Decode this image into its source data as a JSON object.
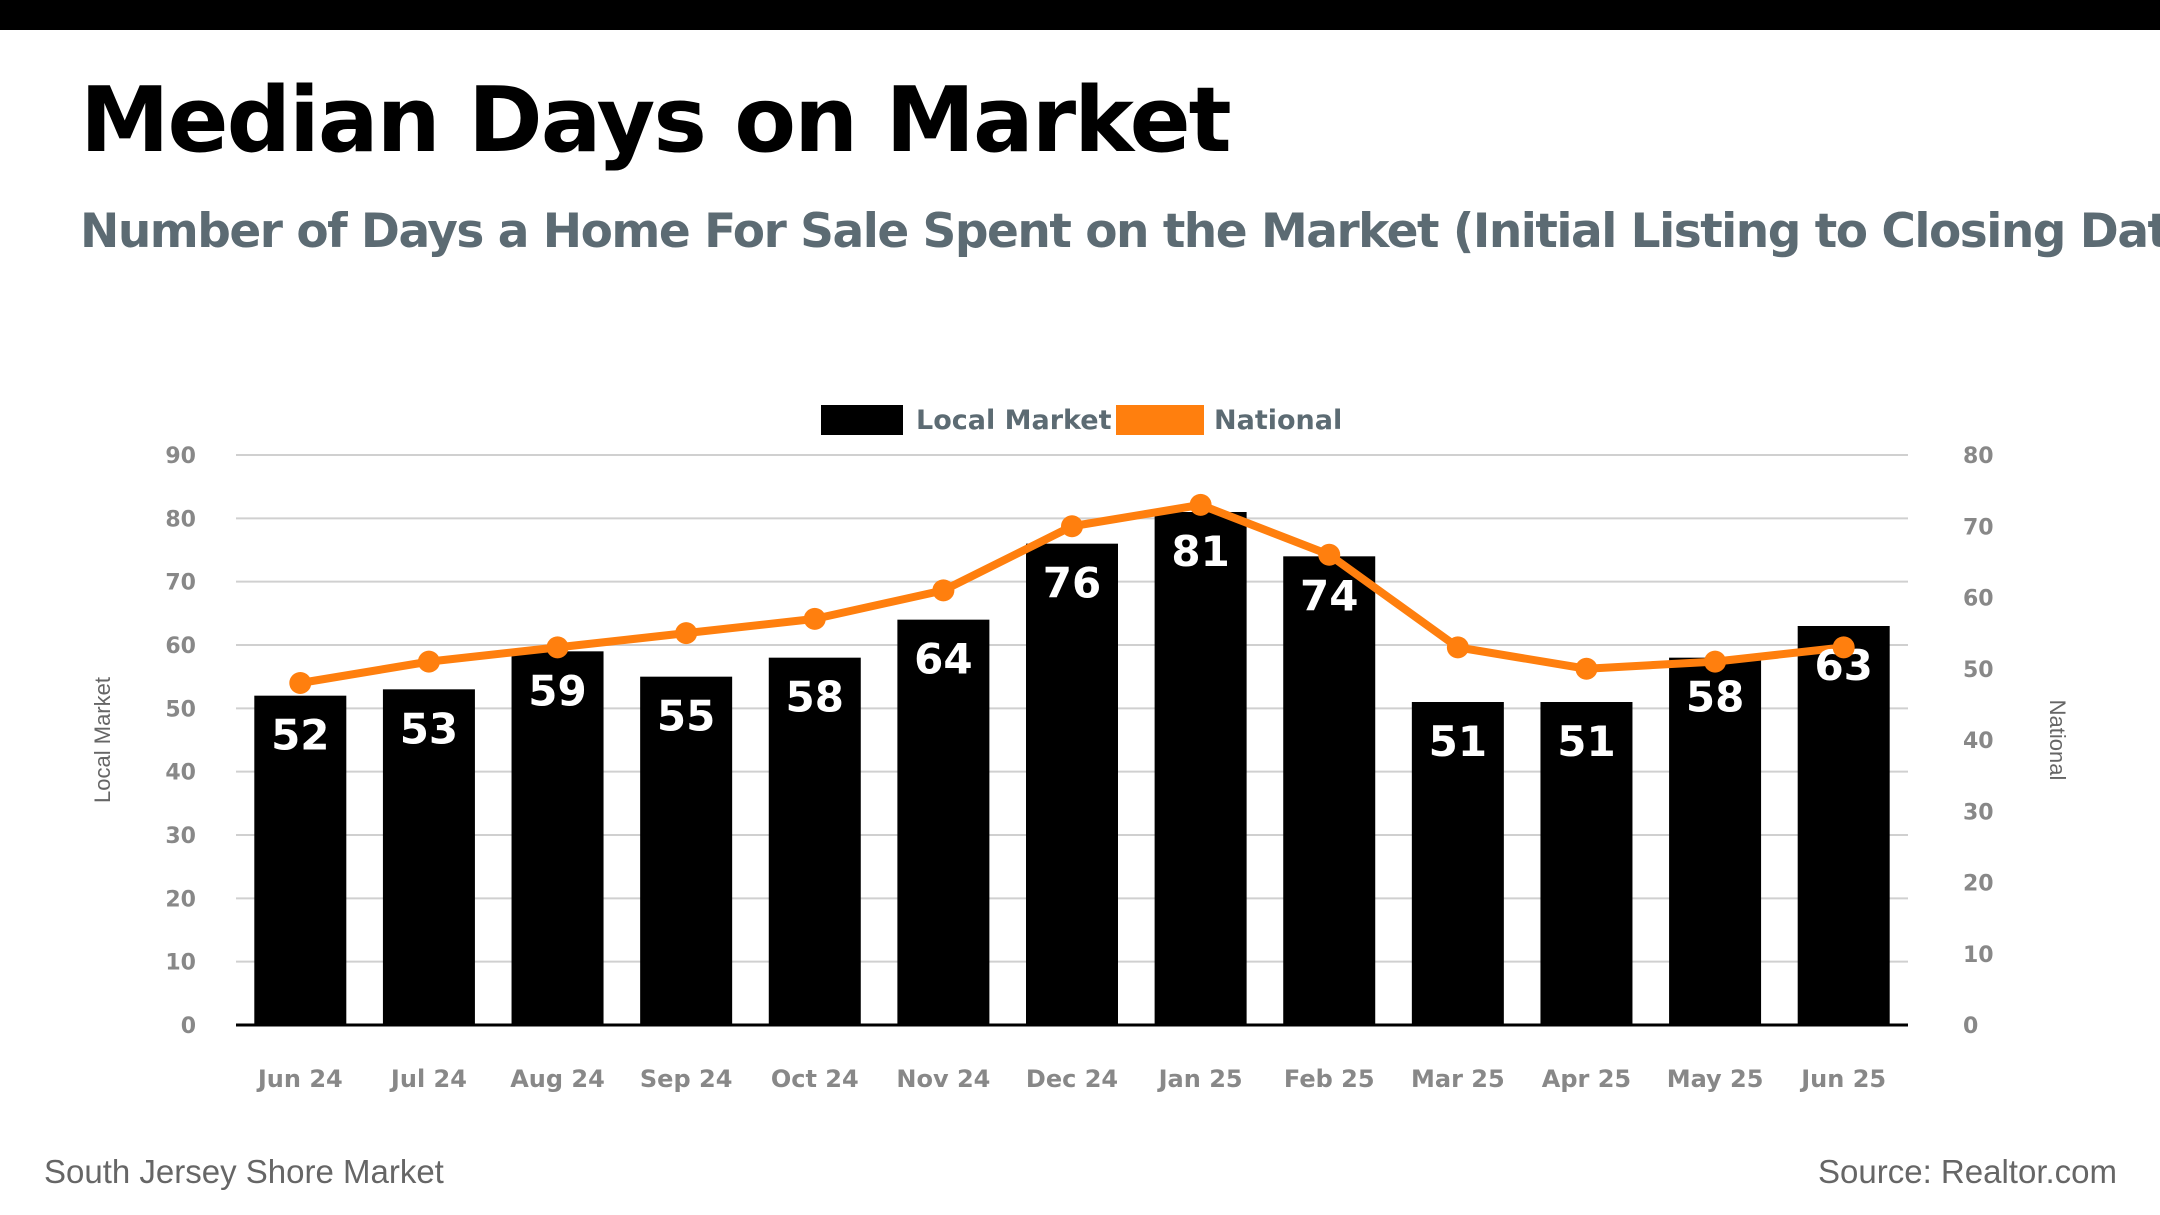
{
  "header": {
    "title": "Median Days on Market",
    "subtitle": "Number of Days a Home For Sale Spent on the Market (Initial Listing to Closing Date)"
  },
  "footer": {
    "left": "South Jersey Shore Market",
    "right": "Source: Realtor.com"
  },
  "colors": {
    "bar": "#000000",
    "line": "#ff7f0e",
    "grid": "#d0d0d0",
    "tick_text": "#888888",
    "legend_text": "#5c6b73",
    "subtitle": "#5c6b73"
  },
  "chart_data": {
    "type": "bar",
    "categories": [
      "Jun 24",
      "Jul 24",
      "Aug 24",
      "Sep 24",
      "Oct 24",
      "Nov 24",
      "Dec 24",
      "Jan 25",
      "Feb 25",
      "Mar 25",
      "Apr 25",
      "May 25",
      "Jun 25"
    ],
    "series": [
      {
        "name": "Local Market",
        "type": "bar",
        "axis": "left",
        "values": [
          52,
          53,
          59,
          55,
          58,
          64,
          76,
          81,
          74,
          51,
          51,
          58,
          63
        ]
      },
      {
        "name": "National",
        "type": "line",
        "axis": "right",
        "values": [
          48,
          51,
          53,
          55,
          57,
          61,
          70,
          73,
          66,
          53,
          50,
          51,
          53
        ]
      }
    ],
    "ylabel": "Local Market",
    "y2label": "National",
    "ylim": [
      0,
      90
    ],
    "y2lim": [
      0,
      80
    ],
    "yticks": [
      "0",
      "10",
      "20",
      "30",
      "40",
      "50",
      "60",
      "70",
      "80",
      "90"
    ],
    "y2ticks": [
      "0",
      "10",
      "20",
      "30",
      "40",
      "50",
      "60",
      "70",
      "80"
    ],
    "grid": true,
    "legend": "top-center"
  }
}
